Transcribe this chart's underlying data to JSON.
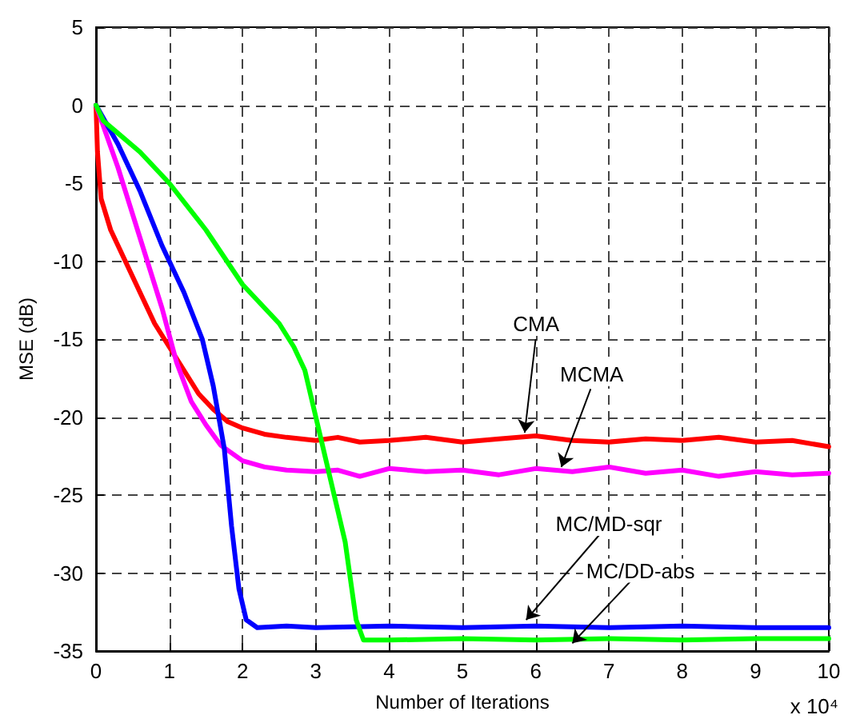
{
  "chart_data": {
    "type": "line",
    "xlabel": "Number of Iterations",
    "ylabel": "MSE (dB)",
    "xlim": [
      0,
      10
    ],
    "xticks": [
      0,
      1,
      2,
      3,
      4,
      5,
      6,
      7,
      8,
      9,
      10
    ],
    "ylim": [
      -35,
      5
    ],
    "yticks": [
      -35,
      -30,
      -25,
      -20,
      -15,
      -10,
      -5,
      0,
      5
    ],
    "grid": true,
    "line_style": "solid",
    "marker": "none",
    "series": [
      {
        "color": "#ff0000",
        "x": [
          0,
          0.02,
          0.07,
          0.2,
          0.4,
          0.6,
          0.8,
          1.0,
          1.2,
          1.4,
          1.6,
          1.8,
          2.0,
          2.3,
          2.6,
          3.0,
          3.3,
          3.6,
          4.0,
          4.5,
          5.0,
          5.5,
          6.0,
          6.5,
          7.0,
          7.5,
          8.0,
          8.5,
          9.0,
          9.5,
          10
        ],
        "values": [
          0,
          -3,
          -6,
          -8,
          -10,
          -12,
          -14,
          -15.5,
          -17,
          -18.5,
          -19.5,
          -20.3,
          -20.7,
          -21.1,
          -21.3,
          -21.5,
          -21.3,
          -21.6,
          -21.5,
          -21.3,
          -21.6,
          -21.4,
          -21.2,
          -21.5,
          -21.6,
          -21.4,
          -21.5,
          -21.3,
          -21.6,
          -21.5,
          -21.9
        ]
      },
      {
        "color": "#ff00ff",
        "x": [
          0,
          0.3,
          0.6,
          0.9,
          1.1,
          1.3,
          1.5,
          1.7,
          2.0,
          2.3,
          2.6,
          3.0,
          3.3,
          3.6,
          4.0,
          4.5,
          5.0,
          5.5,
          6.0,
          6.5,
          7.0,
          7.5,
          8.0,
          8.5,
          9.0,
          9.5,
          10
        ],
        "values": [
          0,
          -4,
          -8.5,
          -13,
          -16.5,
          -19,
          -20.5,
          -21.8,
          -22.8,
          -23.2,
          -23.4,
          -23.5,
          -23.4,
          -23.8,
          -23.3,
          -23.5,
          -23.4,
          -23.7,
          -23.3,
          -23.5,
          -23.2,
          -23.6,
          -23.4,
          -23.8,
          -23.5,
          -23.7,
          -23.6
        ]
      },
      {
        "color": "#0000ff",
        "x": [
          0,
          0.3,
          0.6,
          0.9,
          1.2,
          1.45,
          1.6,
          1.75,
          1.85,
          1.95,
          2.05,
          2.2,
          2.6,
          3.0,
          4.0,
          5.0,
          6.0,
          7.0,
          8.0,
          9.0,
          10
        ],
        "values": [
          0,
          -2.5,
          -5.5,
          -9,
          -12,
          -15,
          -18,
          -22,
          -27,
          -31,
          -33,
          -33.5,
          -33.4,
          -33.5,
          -33.4,
          -33.5,
          -33.4,
          -33.5,
          -33.4,
          -33.5,
          -33.5
        ]
      },
      {
        "color": "#00ff00",
        "x": [
          0,
          0.1,
          0.3,
          0.6,
          1.0,
          1.5,
          2.0,
          2.5,
          2.7,
          2.85,
          3.0,
          3.2,
          3.4,
          3.55,
          3.65,
          4.0,
          5.0,
          6.0,
          7.0,
          8.0,
          9.0,
          10
        ],
        "values": [
          0,
          -1,
          -1.8,
          -3,
          -5,
          -8,
          -11.5,
          -14,
          -15.5,
          -17,
          -20,
          -24,
          -28,
          -33,
          -34.3,
          -34.3,
          -34.2,
          -34.3,
          -34.2,
          -34.3,
          -34.2,
          -34.2
        ]
      }
    ],
    "annotations": [
      {
        "text": "CMA",
        "x": 5.85,
        "y": -21
      },
      {
        "text": "MCMA",
        "x": 6.35,
        "y": -23.2
      },
      {
        "text": "MC/MD-sqr",
        "x": 5.87,
        "y": -33
      },
      {
        "text": "MC/DD-abs",
        "x": 6.5,
        "y": -34.5
      },
      "x 10⁴"
    ]
  }
}
